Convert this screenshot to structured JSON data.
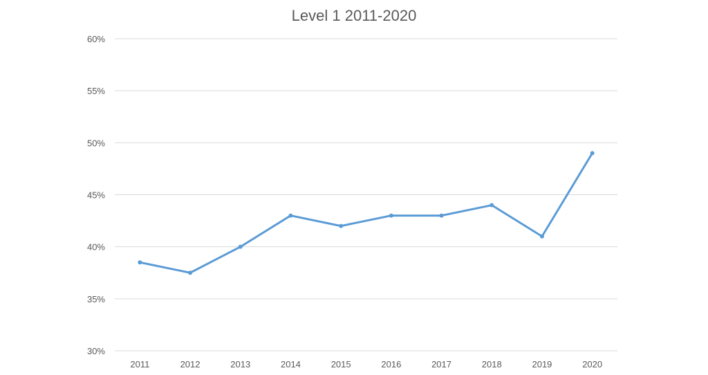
{
  "chart_data": {
    "type": "line",
    "title": "Level 1 2011-2020",
    "xlabel": "",
    "ylabel": "",
    "categories": [
      "2011",
      "2012",
      "2013",
      "2014",
      "2015",
      "2016",
      "2017",
      "2018",
      "2019",
      "2020"
    ],
    "series": [
      {
        "values": [
          38.5,
          37.5,
          40,
          43,
          42,
          43,
          43,
          44,
          41,
          49
        ],
        "color": "#5b9bd5"
      }
    ],
    "ylim": [
      30,
      60
    ],
    "yticks": [
      30,
      35,
      40,
      45,
      50,
      55,
      60
    ],
    "ytick_labels": [
      "30%",
      "35%",
      "40%",
      "45%",
      "50%",
      "55%",
      "60%"
    ],
    "grid": true,
    "legend": "none"
  }
}
